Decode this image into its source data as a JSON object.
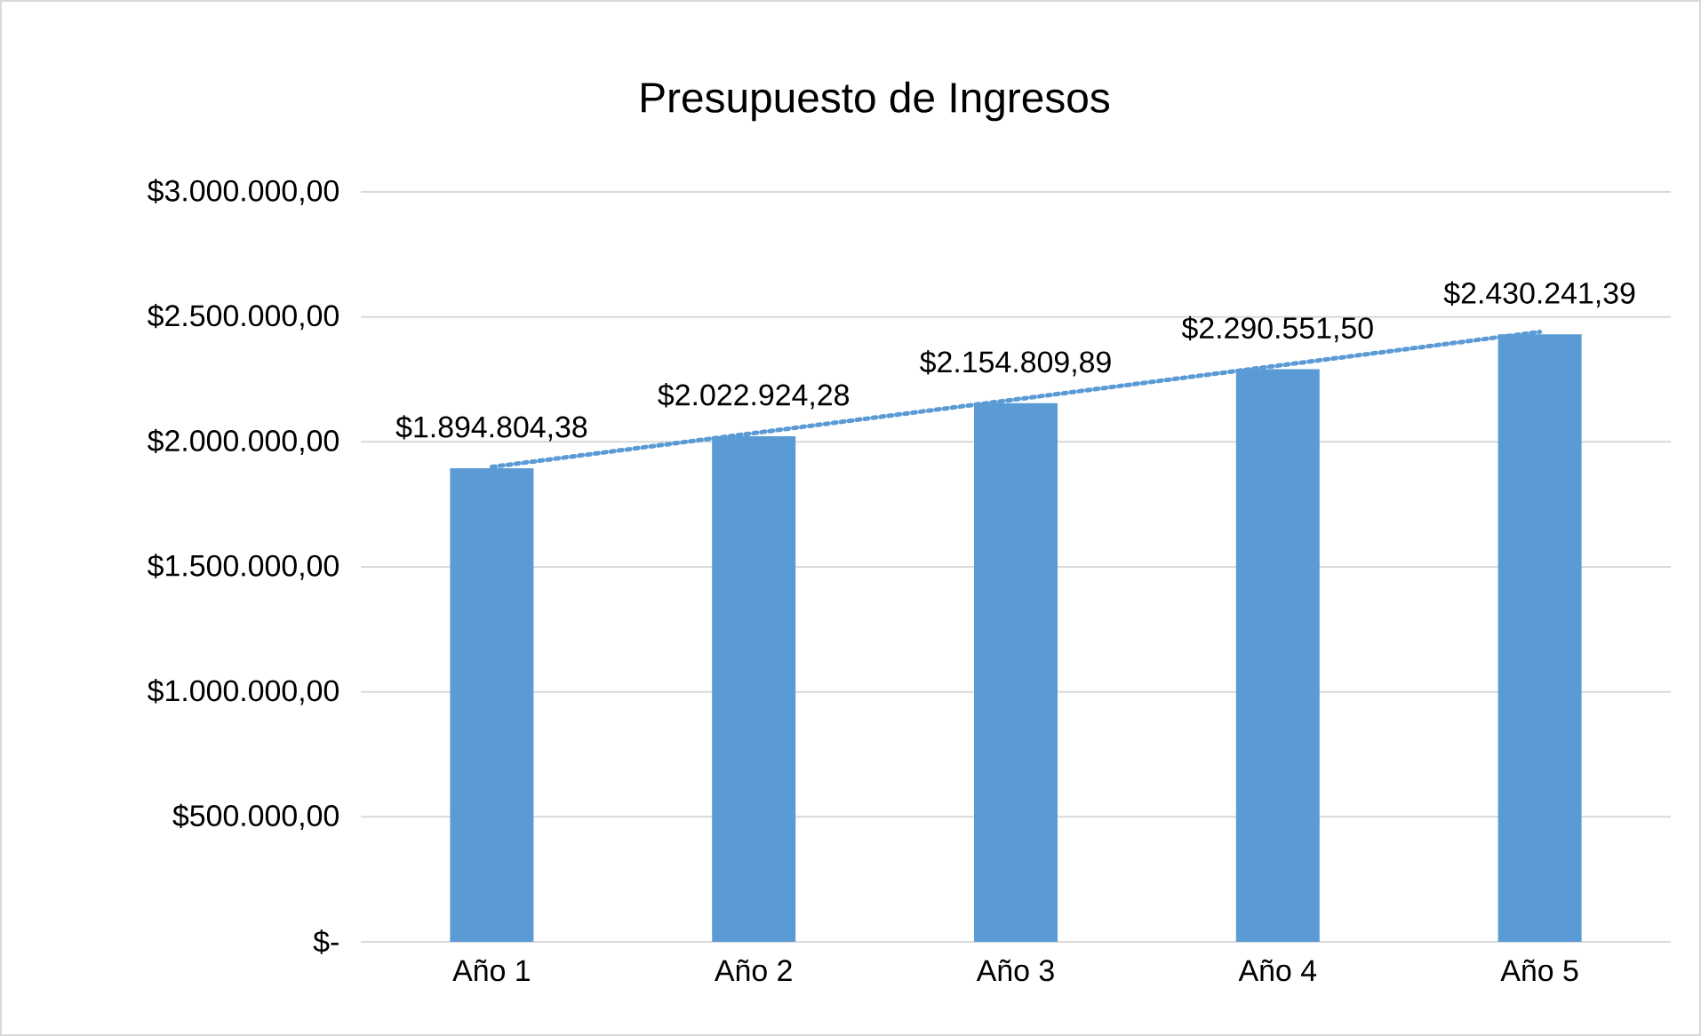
{
  "chart_data": {
    "type": "bar",
    "title": "Presupuesto de Ingresos",
    "categories": [
      "Año 1",
      "Año 2",
      "Año 3",
      "Año 4",
      "Año 5"
    ],
    "series": [
      {
        "color": "#5b9bd5",
        "values": [
          1894804.38,
          2022924.28,
          2154809.89,
          2290551.5,
          2430241.39
        ],
        "value_labels": [
          "$1.894.804,38",
          "$2.022.924,28",
          "$2.154.809,89",
          "$2.290.551,50",
          "$2.430.241,39"
        ]
      },
      {
        "type": "line",
        "color": "#5b9bd5",
        "line_style": "dotted",
        "x": [
          "Año 1",
          "Año 5"
        ],
        "values": [
          1900000,
          2440000
        ]
      }
    ],
    "ylim": [
      0,
      3000000
    ],
    "yticks": [
      {
        "value": 0,
        "label": "$-"
      },
      {
        "value": 500000,
        "label": "$500.000,00"
      },
      {
        "value": 1000000,
        "label": "$1.000.000,00"
      },
      {
        "value": 1500000,
        "label": "$1.500.000,00"
      },
      {
        "value": 2000000,
        "label": "$2.000.000,00"
      },
      {
        "value": 2500000,
        "label": "$2.500.000,00"
      },
      {
        "value": 3000000,
        "label": "$3.000.000,00"
      }
    ],
    "grid": "y"
  }
}
